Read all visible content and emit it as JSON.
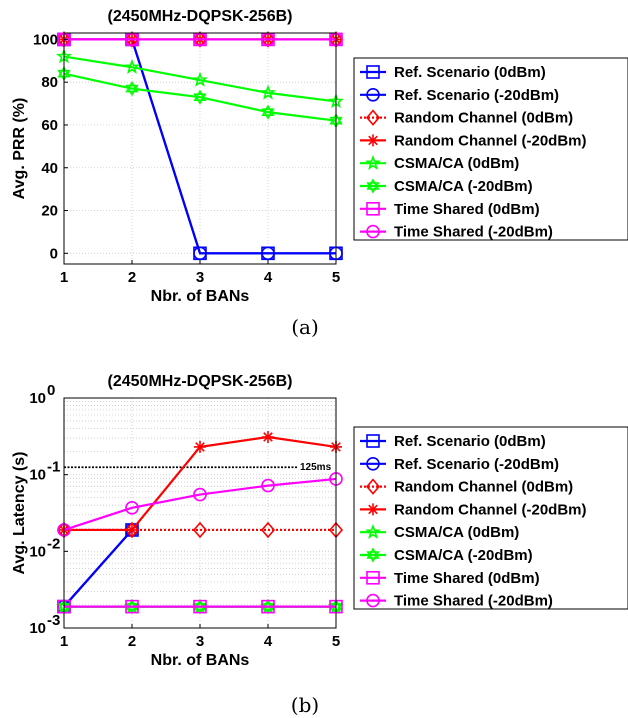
{
  "chart_data": [
    {
      "type": "line",
      "title": "(2450MHz-DQPSK-256B)",
      "xlabel": "Nbr. of BANs",
      "ylabel": "Avg. PRR (%)",
      "caption": "(a)",
      "x": [
        1,
        2,
        3,
        4,
        5
      ],
      "xlim": [
        1,
        5
      ],
      "ylim": [
        -5,
        103
      ],
      "yscale": "linear",
      "xticks": [
        "1",
        "2",
        "3",
        "4",
        "5"
      ],
      "yticks": [
        {
          "value": 0,
          "label": "0"
        },
        {
          "value": 20,
          "label": "20"
        },
        {
          "value": 40,
          "label": "40"
        },
        {
          "value": 60,
          "label": "60"
        },
        {
          "value": 80,
          "label": "80"
        },
        {
          "value": 100,
          "label": "100"
        }
      ],
      "grid": true,
      "legend_position": "right",
      "series": [
        {
          "name": "Ref. Scenario (0dBm)",
          "color": "#0000ff",
          "line": "solid",
          "marker": "square",
          "values": [
            100,
            100,
            0,
            0,
            0
          ]
        },
        {
          "name": "Ref. Scenario (-20dBm)",
          "color": "#0000ff",
          "line": "solid",
          "marker": "circle",
          "values": [
            100,
            100,
            0,
            0,
            0
          ]
        },
        {
          "name": "Random Channel (0dBm)",
          "color": "#ff0000",
          "line": "dotted",
          "marker": "diamond",
          "values": [
            100,
            100,
            100,
            100,
            100
          ]
        },
        {
          "name": "Random Channel (-20dBm)",
          "color": "#ff0000",
          "line": "solid",
          "marker": "asterisk",
          "values": [
            100,
            100,
            100,
            100,
            100
          ]
        },
        {
          "name": "CSMA/CA (0dBm)",
          "color": "#00ff00",
          "line": "solid",
          "marker": "star",
          "values": [
            92,
            87,
            81,
            75,
            71
          ]
        },
        {
          "name": "CSMA/CA (-20dBm)",
          "color": "#00ff00",
          "line": "solid",
          "marker": "hexagram",
          "values": [
            84,
            77,
            73,
            66,
            62
          ]
        },
        {
          "name": "Time Shared (0dBm)",
          "color": "#ff00ff",
          "line": "solid",
          "marker": "square",
          "values": [
            100,
            100,
            100,
            100,
            100
          ]
        },
        {
          "name": "Time Shared (-20dBm)",
          "color": "#ff00ff",
          "line": "solid",
          "marker": "circle",
          "values": [
            100,
            100,
            100,
            100,
            100
          ]
        }
      ]
    },
    {
      "type": "line",
      "title": "(2450MHz-DQPSK-256B)",
      "xlabel": "Nbr. of BANs",
      "ylabel": "Avg. Latency (s)",
      "caption": "(b)",
      "x": [
        1,
        2,
        3,
        4,
        5
      ],
      "xlim": [
        1,
        5
      ],
      "ylim": [
        0.001,
        1
      ],
      "yscale": "log",
      "xticks": [
        "1",
        "2",
        "3",
        "4",
        "5"
      ],
      "yticks": [
        {
          "value": 0.001,
          "base": "10",
          "exp": "-3"
        },
        {
          "value": 0.01,
          "base": "10",
          "exp": "-2"
        },
        {
          "value": 0.1,
          "base": "10",
          "exp": "-1"
        },
        {
          "value": 1,
          "base": "10",
          "exp": "0"
        }
      ],
      "grid": true,
      "legend_position": "right",
      "reference_line": {
        "value": 0.125,
        "label": "125ms",
        "color": "#000000",
        "line": "dotted"
      },
      "series": [
        {
          "name": "Ref. Scenario (0dBm)",
          "color": "#0000ff",
          "line": "solid",
          "marker": "square",
          "values": [
            0.0019,
            0.019,
            null,
            null,
            null
          ]
        },
        {
          "name": "Ref. Scenario (-20dBm)",
          "color": "#0000ff",
          "line": "solid",
          "marker": "circle",
          "values": [
            0.0019,
            0.019,
            null,
            null,
            null
          ]
        },
        {
          "name": "Random Channel (0dBm)",
          "color": "#ff0000",
          "line": "dotted",
          "marker": "diamond",
          "values": [
            0.019,
            0.019,
            0.019,
            0.019,
            0.019
          ]
        },
        {
          "name": "Random Channel (-20dBm)",
          "color": "#ff0000",
          "line": "solid",
          "marker": "asterisk",
          "values": [
            0.019,
            0.019,
            0.23,
            0.31,
            0.23
          ]
        },
        {
          "name": "CSMA/CA (0dBm)",
          "color": "#00ff00",
          "line": "solid",
          "marker": "star",
          "values": [
            0.0019,
            0.0019,
            0.0019,
            0.0019,
            0.0019
          ]
        },
        {
          "name": "CSMA/CA (-20dBm)",
          "color": "#00ff00",
          "line": "solid",
          "marker": "hexagram",
          "values": [
            0.0019,
            0.0019,
            0.0019,
            0.0019,
            0.0019
          ]
        },
        {
          "name": "Time Shared (0dBm)",
          "color": "#ff00ff",
          "line": "solid",
          "marker": "square",
          "values": [
            0.0019,
            0.0019,
            0.0019,
            0.0019,
            0.0019
          ]
        },
        {
          "name": "Time Shared (-20dBm)",
          "color": "#ff00ff",
          "line": "solid",
          "marker": "circle",
          "values": [
            0.019,
            0.037,
            0.055,
            0.072,
            0.088
          ]
        }
      ]
    }
  ]
}
